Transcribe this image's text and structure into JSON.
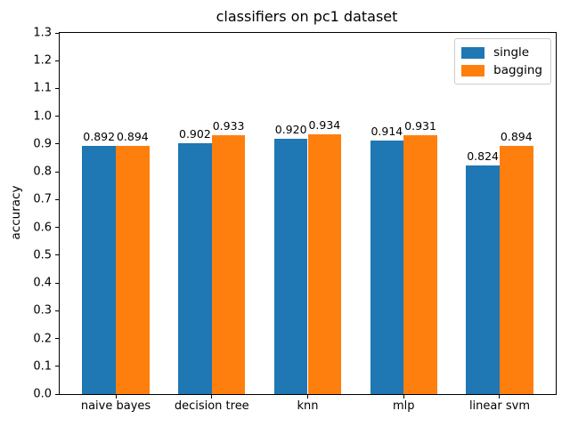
{
  "figure": {
    "title": "classifiers on pc1 dataset",
    "ylabel": "accuracy",
    "background_color": "#ffffff",
    "spine_color": "#000000"
  },
  "legend": {
    "position": "upper right",
    "items": [
      {
        "label": "single",
        "color": "#1f77b4"
      },
      {
        "label": "bagging",
        "color": "#ff7f0e"
      }
    ]
  },
  "chart_data": {
    "type": "bar",
    "title": "classifiers on pc1 dataset",
    "xlabel": "",
    "ylabel": "accuracy",
    "categories": [
      "naive bayes",
      "decision tree",
      "knn",
      "mlp",
      "linear svm"
    ],
    "series": [
      {
        "name": "single",
        "color": "#1f77b4",
        "values": [
          0.892,
          0.902,
          0.92,
          0.914,
          0.824
        ]
      },
      {
        "name": "bagging",
        "color": "#ff7f0e",
        "values": [
          0.894,
          0.933,
          0.934,
          0.931,
          0.894
        ]
      }
    ],
    "bar_labels": [
      "0.892",
      "0.894",
      "0.902",
      "0.933",
      "0.920",
      "0.934",
      "0.914",
      "0.931",
      "0.824",
      "0.894"
    ],
    "ylim": [
      0.0,
      1.3
    ],
    "yticks": [
      0.0,
      0.1,
      0.2,
      0.3,
      0.4,
      0.5,
      0.6,
      0.7,
      0.8,
      0.9,
      1.0,
      1.1,
      1.2,
      1.3
    ],
    "bar_width_fraction": 0.35,
    "x_margin_fraction": 0.05,
    "grid": false,
    "legend_position": "upper right"
  }
}
